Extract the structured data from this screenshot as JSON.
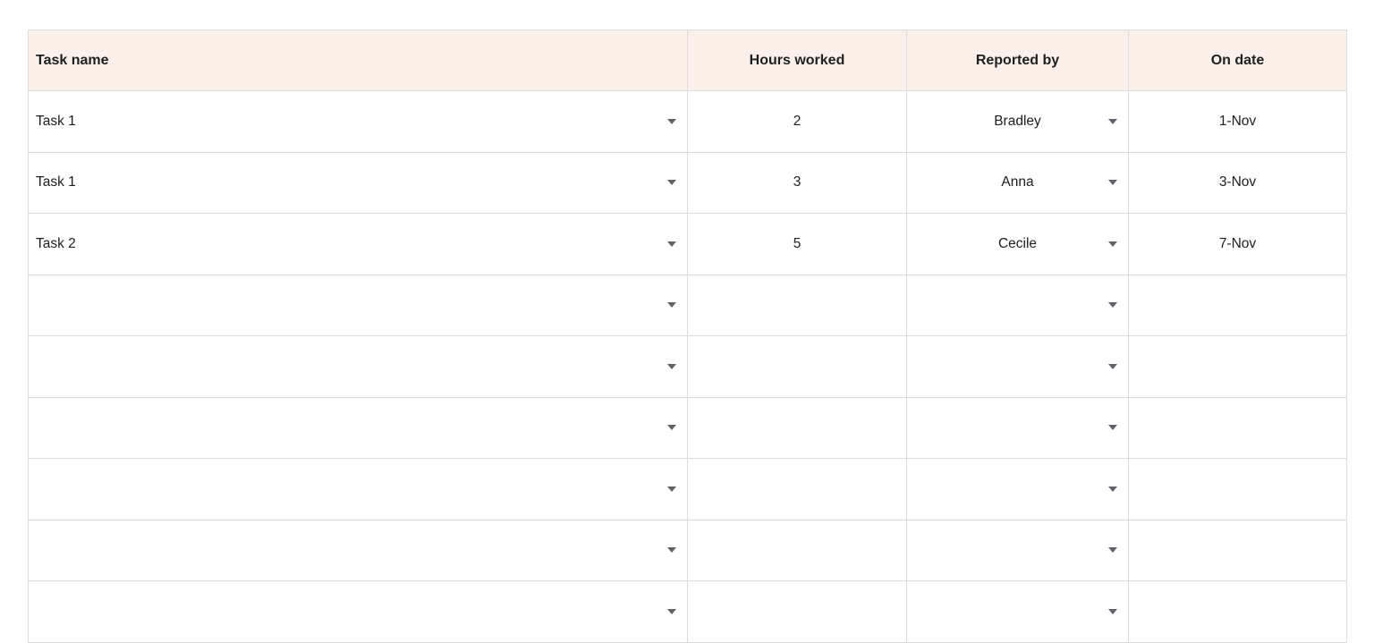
{
  "table": {
    "headers": [
      {
        "label": "Task name"
      },
      {
        "label": "Hours worked"
      },
      {
        "label": "Reported by"
      },
      {
        "label": "On date"
      }
    ],
    "rows": [
      {
        "task": "Task 1",
        "hours": "2",
        "reported_by": "Bradley",
        "on_date": "1-Nov"
      },
      {
        "task": "Task 1",
        "hours": "3",
        "reported_by": "Anna",
        "on_date": "3-Nov"
      },
      {
        "task": "Task 2",
        "hours": "5",
        "reported_by": "Cecile",
        "on_date": "7-Nov"
      },
      {
        "task": "",
        "hours": "",
        "reported_by": "",
        "on_date": ""
      },
      {
        "task": "",
        "hours": "",
        "reported_by": "",
        "on_date": ""
      },
      {
        "task": "",
        "hours": "",
        "reported_by": "",
        "on_date": ""
      },
      {
        "task": "",
        "hours": "",
        "reported_by": "",
        "on_date": ""
      },
      {
        "task": "",
        "hours": "",
        "reported_by": "",
        "on_date": ""
      },
      {
        "task": "",
        "hours": "",
        "reported_by": "",
        "on_date": ""
      }
    ],
    "colors": {
      "header_bg": "#fbf1ea",
      "border": "#dcdcdc",
      "text": "#202020",
      "arrow": "#5f6368"
    },
    "icons": {
      "task_dropdown": "chevron-down-icon",
      "reported_by_dropdown": "chevron-down-icon"
    }
  }
}
